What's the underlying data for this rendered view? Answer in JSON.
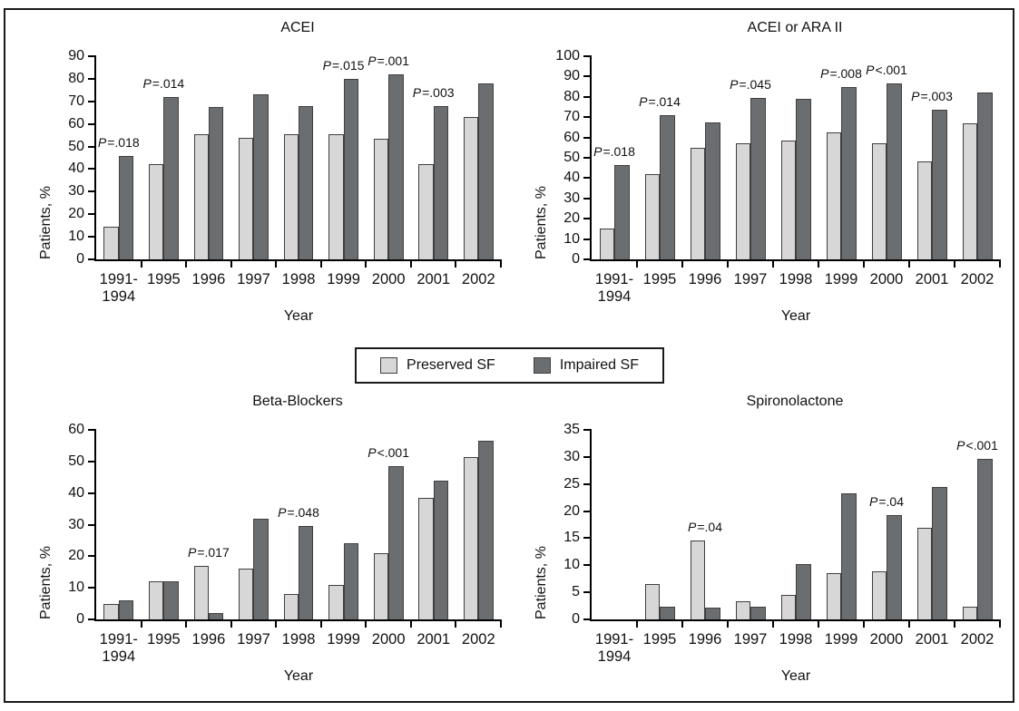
{
  "figure": {
    "ylabel": "Patients, %",
    "xlabel": "Year"
  },
  "colors": {
    "preserved": "#d7d7d7",
    "impaired": "#6b6e70",
    "bar_border": "#3f3f3f",
    "axis": "#000000"
  },
  "legend": {
    "items": [
      {
        "label": "Preserved SF",
        "color_key": "preserved"
      },
      {
        "label": "Impaired SF",
        "color_key": "impaired"
      }
    ]
  },
  "chart_data": [
    {
      "type": "bar",
      "title": "ACEI",
      "xlabel": "Year",
      "ylabel": "Patients, %",
      "ylim": [
        0,
        90
      ],
      "ytick_step": 10,
      "grid": false,
      "categories": [
        "1991-\n1994",
        "1995",
        "1996",
        "1997",
        "1998",
        "1999",
        "2000",
        "2001",
        "2002"
      ],
      "series": [
        {
          "name": "Preserved SF",
          "values": [
            14.5,
            42,
            55.5,
            54,
            55.5,
            55.5,
            53.5,
            42,
            63
          ]
        },
        {
          "name": "Impaired SF",
          "values": [
            46,
            72,
            67.5,
            73,
            68,
            80,
            82,
            68,
            78
          ]
        }
      ],
      "p_labels": [
        {
          "category_index": 0,
          "text": "P=.018"
        },
        {
          "category_index": 1,
          "text": "P=.014"
        },
        {
          "category_index": 5,
          "text": "P=.015"
        },
        {
          "category_index": 6,
          "text": "P=.001"
        },
        {
          "category_index": 7,
          "text": "P=.003"
        }
      ]
    },
    {
      "type": "bar",
      "title": "ACEI or ARA II",
      "xlabel": "Year",
      "ylabel": "Patients, %",
      "ylim": [
        0,
        100
      ],
      "ytick_step": 10,
      "grid": false,
      "categories": [
        "1991-\n1994",
        "1995",
        "1996",
        "1997",
        "1998",
        "1999",
        "2000",
        "2001",
        "2002"
      ],
      "series": [
        {
          "name": "Preserved SF",
          "values": [
            15,
            42,
            55,
            57,
            58.5,
            62.5,
            57,
            48,
            67
          ]
        },
        {
          "name": "Impaired SF",
          "values": [
            46.5,
            71,
            67.5,
            79.5,
            79,
            85,
            86.5,
            73.5,
            82
          ]
        }
      ],
      "p_labels": [
        {
          "category_index": 0,
          "text": "P=.018"
        },
        {
          "category_index": 1,
          "text": "P=.014"
        },
        {
          "category_index": 3,
          "text": "P=.045"
        },
        {
          "category_index": 5,
          "text": "P=.008"
        },
        {
          "category_index": 6,
          "text": "P<.001"
        },
        {
          "category_index": 7,
          "text": "P=.003"
        }
      ]
    },
    {
      "type": "bar",
      "title": "Beta-Blockers",
      "xlabel": "Year",
      "ylabel": "Patients, %",
      "ylim": [
        0,
        60
      ],
      "ytick_step": 10,
      "grid": false,
      "categories": [
        "1991-\n1994",
        "1995",
        "1996",
        "1997",
        "1998",
        "1999",
        "2000",
        "2001",
        "2002"
      ],
      "series": [
        {
          "name": "Preserved SF",
          "values": [
            5,
            12,
            17,
            16,
            8,
            11,
            21,
            38.5,
            51.5
          ]
        },
        {
          "name": "Impaired SF",
          "values": [
            6,
            12,
            2,
            32,
            29.5,
            24,
            48.5,
            44,
            56.5
          ]
        }
      ],
      "p_labels": [
        {
          "category_index": 2,
          "text": "P=.017"
        },
        {
          "category_index": 4,
          "text": "P=.048"
        },
        {
          "category_index": 6,
          "text": "P<.001"
        }
      ]
    },
    {
      "type": "bar",
      "title": "Spironolactone",
      "xlabel": "Year",
      "ylabel": "Patients, %",
      "ylim": [
        0,
        35
      ],
      "ytick_step": 5,
      "grid": false,
      "categories": [
        "1991-\n1994",
        "1995",
        "1996",
        "1997",
        "1998",
        "1999",
        "2000",
        "2001",
        "2002"
      ],
      "series": [
        {
          "name": "Preserved SF",
          "values": [
            0,
            6.5,
            14.6,
            3.4,
            4.5,
            8.5,
            8.8,
            16.9,
            2.3
          ]
        },
        {
          "name": "Impaired SF",
          "values": [
            0,
            2.3,
            2.1,
            2.4,
            10.2,
            23.3,
            19.3,
            24.4,
            29.7
          ]
        }
      ],
      "p_labels": [
        {
          "category_index": 2,
          "text": "P=.04"
        },
        {
          "category_index": 6,
          "text": "P=.04"
        },
        {
          "category_index": 8,
          "text": "P<.001"
        }
      ]
    }
  ]
}
